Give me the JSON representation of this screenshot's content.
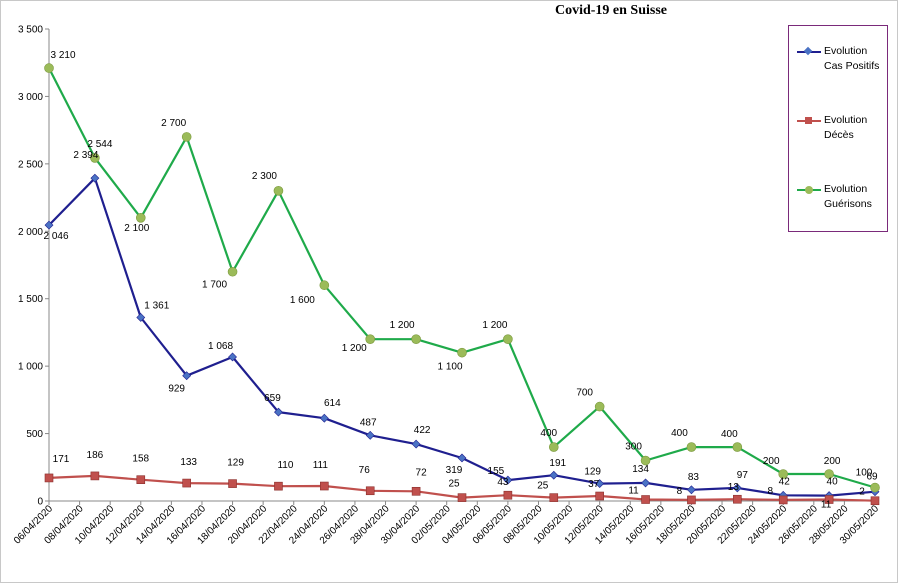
{
  "chart_data": {
    "type": "line",
    "title": "Covid-19 en Suisse",
    "categories": [
      "06/04/2020",
      "08/04/2020",
      "10/04/2020",
      "12/04/2020",
      "14/04/2020",
      "16/04/2020",
      "18/04/2020",
      "20/04/2020",
      "22/04/2020",
      "24/04/2020",
      "26/04/2020",
      "28/04/2020",
      "30/04/2020",
      "02/05/2020",
      "04/05/2020",
      "06/05/2020",
      "08/05/2020",
      "10/05/2020",
      "12/05/2020",
      "14/05/2020",
      "16/05/2020",
      "18/05/2020",
      "20/05/2020",
      "22/05/2020",
      "24/05/2020",
      "26/05/2020",
      "28/05/2020",
      "30/05/2020"
    ],
    "x": [
      0,
      2,
      4,
      6,
      8,
      10,
      12,
      14,
      16,
      18,
      20,
      22,
      24,
      26,
      28,
      30,
      32,
      34,
      36,
      38,
      40,
      42,
      44,
      46,
      48,
      50,
      52,
      54
    ],
    "ylim": [
      0,
      3500
    ],
    "yticks": [
      0,
      500,
      1000,
      1500,
      2000,
      2500,
      3000,
      3500
    ],
    "ytick_labels": [
      "0",
      "500",
      "1 000",
      "1 500",
      "2 000",
      "2 500",
      "3 000",
      "3 500"
    ],
    "legend_position": "right",
    "series": [
      {
        "name": "Evolution\nCas Positifs",
        "color": "#1f1f8f",
        "marker_color": "#4a72c4",
        "marker": "diamond",
        "x": [
          0,
          3,
          6,
          9,
          12,
          15,
          18,
          21,
          24,
          27,
          30,
          33,
          36,
          39,
          42,
          45,
          48,
          51,
          54
        ],
        "values": [
          2046,
          2394,
          1361,
          929,
          1068,
          659,
          614,
          487,
          422,
          319,
          155,
          191,
          129,
          134,
          83,
          97,
          42,
          40,
          69
        ],
        "labels": [
          "2 046",
          "2 394",
          "1 361",
          "929",
          "1 068",
          "659",
          "614",
          "487",
          "422",
          "319",
          "155",
          "191",
          "129",
          "134",
          "83",
          "97",
          "42",
          "40",
          "69"
        ]
      },
      {
        "name": "Evolution\nDécès",
        "color": "#c0504d",
        "marker_color": "#c0504d",
        "marker": "square",
        "x": [
          0,
          3,
          6,
          9,
          12,
          15,
          18,
          21,
          24,
          27,
          30,
          33,
          36,
          39,
          42,
          45,
          48,
          51,
          54
        ],
        "values": [
          171,
          186,
          158,
          133,
          129,
          110,
          111,
          76,
          72,
          25,
          43,
          25,
          37,
          11,
          8,
          13,
          8,
          11,
          2
        ],
        "labels": [
          "171",
          "186",
          "158",
          "133",
          "129",
          "110",
          "111",
          "76",
          "72",
          "25",
          "43",
          "25",
          "37",
          "11",
          "8",
          "13",
          "8",
          "11",
          "2"
        ]
      },
      {
        "name": "Evolution\nGuérisons",
        "color": "#1faa4a",
        "marker_color": "#9bbb59",
        "marker": "circle",
        "x": [
          0,
          3,
          6,
          9,
          12,
          15,
          18,
          21,
          24,
          27,
          30,
          33,
          36,
          39,
          42,
          45,
          48,
          51,
          54
        ],
        "values": [
          3210,
          2544,
          2100,
          2700,
          1700,
          2300,
          1600,
          1200,
          1200,
          1100,
          1200,
          400,
          700,
          300,
          400,
          400,
          200,
          200,
          100
        ],
        "labels": [
          "3 210",
          "2 544",
          "2 100",
          "2 700",
          "1 700",
          "2 300",
          "1 600",
          "1 200",
          "1 200",
          "1 100",
          "1 200",
          "400",
          "700",
          "300",
          "400",
          "400",
          "200",
          "200",
          "100"
        ]
      }
    ]
  }
}
